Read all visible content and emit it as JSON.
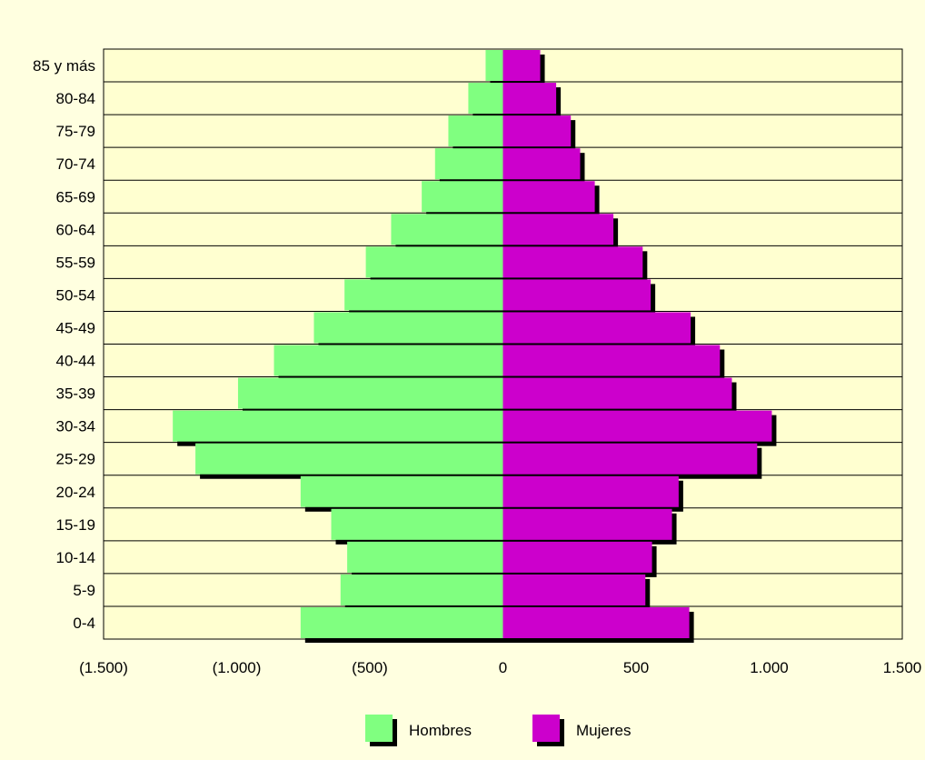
{
  "chart_data": {
    "type": "bar",
    "orientation": "horizontal",
    "categories": [
      "85 y más",
      "80-84",
      "75-79",
      "70-74",
      "65-69",
      "60-64",
      "55-59",
      "50-54",
      "45-49",
      "40-44",
      "35-39",
      "30-34",
      "25-29",
      "20-24",
      "15-19",
      "10-14",
      "5-9",
      "0-4"
    ],
    "series": [
      {
        "name": "Hombres",
        "color": "#80ff80",
        "values": [
          -65,
          -130,
          -205,
          -255,
          -305,
          -420,
          -515,
          -595,
          -710,
          -860,
          -995,
          -1240,
          -1155,
          -760,
          -645,
          -585,
          -610,
          -760
        ]
      },
      {
        "name": "Mujeres",
        "color": "#cc00cc",
        "values": [
          140,
          200,
          255,
          290,
          345,
          415,
          525,
          555,
          705,
          815,
          860,
          1010,
          955,
          660,
          635,
          560,
          535,
          700
        ]
      }
    ],
    "xlim": [
      -1500,
      1500
    ],
    "x_ticks": [
      -1500,
      -1000,
      -500,
      0,
      500,
      1000,
      1500
    ],
    "x_tick_labels": [
      "(1.500)",
      "(1.000)",
      "(500)",
      "0",
      "500",
      "1.000",
      "1.500"
    ],
    "title": "",
    "xlabel": "",
    "ylabel": "",
    "grid": "horizontal",
    "legend_position": "bottom"
  }
}
